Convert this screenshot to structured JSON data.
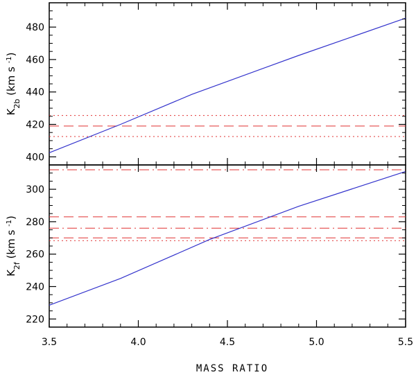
{
  "chart_data": {
    "type": "line",
    "xlabel": "MASS RATIO",
    "xlim": [
      3.5,
      5.5
    ],
    "x_ticks": [
      3.5,
      4.0,
      4.5,
      5.0,
      5.5
    ],
    "x_tick_labels": [
      "3.5",
      "4.0",
      "4.5",
      "5.0",
      "5.5"
    ],
    "panels": [
      {
        "name": "top",
        "ylabel_main": "K",
        "ylabel_sub": "2b",
        "ylabel_unit": "(km s",
        "ylabel_sup": "-1",
        "ylabel_close": ")",
        "ylim": [
          395,
          495
        ],
        "y_ticks": [
          400,
          420,
          440,
          460,
          480
        ],
        "y_tick_labels": [
          "400",
          "420",
          "440",
          "460",
          "480"
        ],
        "curve": {
          "color": "#3333cc",
          "x": [
            3.5,
            3.9,
            4.3,
            4.9,
            5.5
          ],
          "y": [
            402.5,
            420,
            438.5,
            462.5,
            485.5
          ]
        },
        "hlines": [
          {
            "y": 419,
            "style": "dashed",
            "color": "#e03030"
          },
          {
            "y": 425.5,
            "style": "dotted",
            "color": "#e03030"
          },
          {
            "y": 412.5,
            "style": "dotted",
            "color": "#e03030"
          }
        ]
      },
      {
        "name": "bottom",
        "ylabel_main": "K",
        "ylabel_sub": "2f",
        "ylabel_unit": "(km s",
        "ylabel_sup": "-1",
        "ylabel_close": ")",
        "ylim": [
          215,
          315
        ],
        "y_ticks": [
          220,
          240,
          260,
          280,
          300
        ],
        "y_tick_labels": [
          "220",
          "240",
          "260",
          "280",
          "300"
        ],
        "curve": {
          "color": "#3333cc",
          "x": [
            3.5,
            3.9,
            4.4,
            4.9,
            5.5
          ],
          "y": [
            228.5,
            245,
            269,
            289.5,
            311
          ]
        },
        "hlines": [
          {
            "y": 312,
            "style": "dashdot",
            "color": "#e03030"
          },
          {
            "y": 283,
            "style": "dashed",
            "color": "#e03030"
          },
          {
            "y": 276,
            "style": "dashdot",
            "color": "#e03030"
          },
          {
            "y": 270,
            "style": "dashed",
            "color": "#e03030"
          },
          {
            "y": 268.3,
            "style": "dotted",
            "color": "#e03030"
          }
        ]
      }
    ]
  }
}
